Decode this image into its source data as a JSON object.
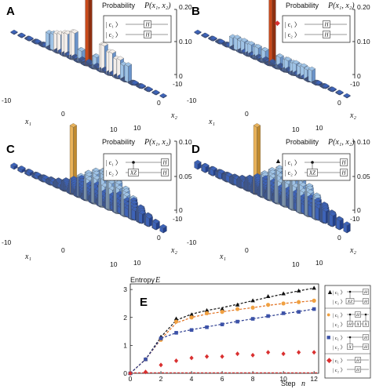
{
  "panels": [
    {
      "label": "A",
      "zlabel_prefix": "Probability",
      "zlabel_var": "P(x₁, x₂)",
      "zticks": [
        "0.20",
        "0.10",
        "0"
      ],
      "x1_label": "x₁",
      "x2_label": "x₂",
      "x1_ticks": [
        "-10",
        "0",
        "10"
      ],
      "x2_ticks": [
        "-10",
        "0",
        "10"
      ],
      "circuit": {
        "marker": "",
        "lines": [
          {
            "ket": "| c₁ 〉",
            "gates": [
              "H"
            ]
          },
          {
            "ket": "| c₂ 〉",
            "gates": [
              "H"
            ]
          }
        ]
      }
    },
    {
      "label": "B",
      "zlabel_prefix": "Probability",
      "zlabel_var": "P(x₁, x₂)",
      "zticks": [
        "0.20",
        "0.10",
        "0"
      ],
      "x1_label": "x₁",
      "x2_label": "x₂",
      "x1_ticks": [
        "-10",
        "0",
        "10"
      ],
      "x2_ticks": [
        "-10",
        "0",
        "10"
      ],
      "circuit": {
        "marker": "◆",
        "lines": [
          {
            "ket": "| c₁ 〉",
            "gates": [
              "H"
            ]
          },
          {
            "ket": "| c₂ 〉",
            "gates": [
              "H"
            ]
          }
        ]
      }
    },
    {
      "label": "C",
      "zlabel_prefix": "Probability",
      "zlabel_var": "P(x₁, x₂)",
      "zticks": [
        "0.10",
        "0.05",
        "0"
      ],
      "x1_label": "x₁",
      "x2_label": "x₂",
      "x1_ticks": [
        "-10",
        "0",
        "10"
      ],
      "x2_ticks": [
        "-10",
        "0",
        "10"
      ],
      "circuit": {
        "marker": "",
        "lines": [
          {
            "ket": "| c₁ 〉",
            "gates": [
              "●",
              "H"
            ]
          },
          {
            "ket": "| c₂ 〉",
            "gates": [
              "XZ",
              "H"
            ]
          }
        ]
      }
    },
    {
      "label": "D",
      "zlabel_prefix": "Probability",
      "zlabel_var": "P(x₁, x₂)",
      "zticks": [
        "0.10",
        "0.05",
        "0"
      ],
      "x1_label": "x₁",
      "x2_label": "x₂",
      "x1_ticks": [
        "-10",
        "0",
        "10"
      ],
      "x2_ticks": [
        "-10",
        "0",
        "10"
      ],
      "circuit": {
        "marker": "▲",
        "lines": [
          {
            "ket": "| c₁ 〉",
            "gates": [
              "●",
              "H"
            ]
          },
          {
            "ket": "| c₂ 〉",
            "gates": [
              "XZ",
              "H"
            ]
          }
        ]
      }
    }
  ],
  "panelE": {
    "label": "E",
    "ylabel_prefix": "Entropy",
    "ylabel_var": "E",
    "xlabel_prefix": "Step",
    "xlabel_var": "n",
    "legend": [
      {
        "marker": "▲",
        "color": "#111111",
        "lines": [
          {
            "ket": "| c₁ 〉",
            "gates": [
              "●",
              "H"
            ]
          },
          {
            "ket": "| c₂ 〉",
            "gates": [
              "XZ",
              "H"
            ]
          }
        ]
      },
      {
        "marker": "●",
        "color": "#f0a040",
        "lines": [
          {
            "ket": "| c₁ 〉",
            "gates": [
              "●",
              "H",
              "●"
            ]
          },
          {
            "ket": "| c₂ 〉",
            "gates": [
              "H",
              "X",
              "X"
            ]
          }
        ]
      },
      {
        "marker": "■",
        "color": "#3c52a8",
        "lines": [
          {
            "ket": "| c₁ 〉",
            "gates": [
              "●",
              "H"
            ]
          },
          {
            "ket": "| c₂ 〉",
            "gates": [
              "X",
              "H"
            ]
          }
        ]
      },
      {
        "marker": "◆",
        "color": "#d93030",
        "lines": [
          {
            "ket": "| c₁ 〉",
            "gates": [
              "H"
            ]
          },
          {
            "ket": "| c₂ 〉",
            "gates": [
              "H"
            ]
          }
        ]
      }
    ]
  },
  "chart_data": {
    "type": "scatter",
    "title": "",
    "xlabel": "Step n",
    "ylabel": "Entropy E",
    "xlim": [
      0,
      12.3
    ],
    "ylim": [
      0,
      3.2
    ],
    "xticks": [
      0,
      2,
      4,
      6,
      8,
      10,
      12
    ],
    "yticks": [
      0,
      1,
      2,
      3
    ],
    "grid": false,
    "legend_position": "right",
    "series": [
      {
        "marker": "triangle",
        "color": "#111111",
        "x": [
          0,
          1,
          2,
          3,
          4,
          5,
          6,
          7,
          8,
          9,
          10,
          11,
          12
        ],
        "y": [
          0,
          0.5,
          1.3,
          1.95,
          2.1,
          2.25,
          2.3,
          2.45,
          2.6,
          2.75,
          2.85,
          2.95,
          3.05
        ]
      },
      {
        "marker": "circle",
        "color": "#f0a040",
        "x": [
          0,
          1,
          2,
          3,
          4,
          5,
          6,
          7,
          8,
          9,
          10,
          11,
          12
        ],
        "y": [
          0,
          0.5,
          1.2,
          1.85,
          2.0,
          2.15,
          2.2,
          2.3,
          2.35,
          2.45,
          2.5,
          2.55,
          2.6
        ]
      },
      {
        "marker": "square",
        "color": "#3c52a8",
        "x": [
          0,
          1,
          2,
          3,
          4,
          5,
          6,
          7,
          8,
          9,
          10,
          11,
          12
        ],
        "y": [
          0,
          0.5,
          1.25,
          1.45,
          1.55,
          1.65,
          1.75,
          1.85,
          1.95,
          2.05,
          2.15,
          2.2,
          2.3
        ]
      },
      {
        "marker": "diamond",
        "color": "#d93030",
        "x": [
          0,
          1,
          2,
          3,
          4,
          5,
          6,
          7,
          8,
          9,
          10,
          11,
          12
        ],
        "y": [
          0,
          0.05,
          0.3,
          0.45,
          0.55,
          0.6,
          0.6,
          0.7,
          0.65,
          0.75,
          0.7,
          0.75,
          0.75
        ]
      }
    ],
    "fits": [
      {
        "color": "#111111",
        "style": "dashed",
        "x": [
          0,
          1,
          2,
          3,
          4,
          5,
          6,
          7,
          8,
          9,
          10,
          11,
          12
        ],
        "y": [
          0,
          0.5,
          1.3,
          1.9,
          2.12,
          2.25,
          2.35,
          2.47,
          2.6,
          2.72,
          2.84,
          2.95,
          3.05
        ]
      },
      {
        "color": "#e07020",
        "style": "dashed",
        "x": [
          0,
          1,
          2,
          3,
          4,
          5,
          6,
          7,
          8,
          9,
          10,
          11,
          12
        ],
        "y": [
          0,
          0.5,
          1.22,
          1.8,
          2.0,
          2.12,
          2.2,
          2.28,
          2.35,
          2.43,
          2.5,
          2.55,
          2.6
        ]
      },
      {
        "color": "#2a3c90",
        "style": "dashed",
        "x": [
          0,
          1,
          2,
          3,
          4,
          5,
          6,
          7,
          8,
          9,
          10,
          11,
          12
        ],
        "y": [
          0,
          0.5,
          1.25,
          1.45,
          1.56,
          1.66,
          1.76,
          1.86,
          1.95,
          2.04,
          2.13,
          2.21,
          2.3
        ]
      },
      {
        "color": "#d93030",
        "style": "dashed",
        "x": [
          0,
          12.3
        ],
        "y": [
          0.02,
          0.02
        ]
      }
    ]
  }
}
